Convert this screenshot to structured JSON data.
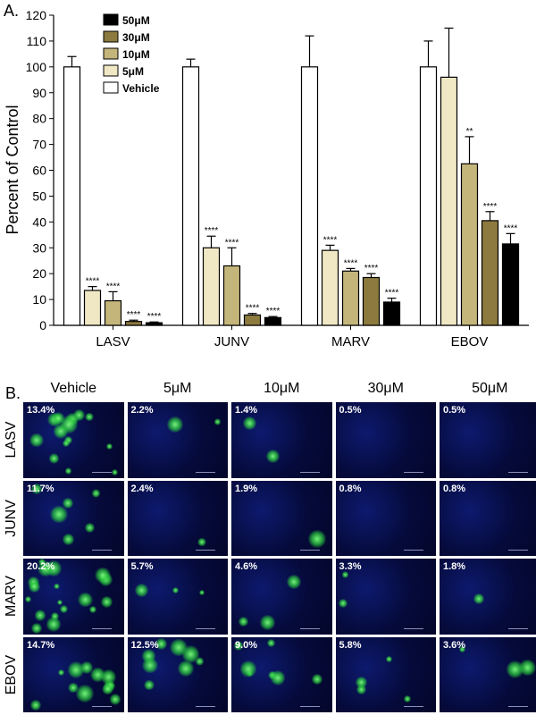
{
  "panel_a_label": "A.",
  "panel_b_label": "B.",
  "chart_data": {
    "type": "bar",
    "ylabel": "Percent of Control",
    "ylim": [
      0,
      120
    ],
    "yticks": [
      0,
      10,
      20,
      30,
      40,
      50,
      60,
      70,
      80,
      90,
      100,
      110,
      120
    ],
    "categories": [
      "LASV",
      "JUNV",
      "MARV",
      "EBOV"
    ],
    "legend_placement": "top-left",
    "legend_order": [
      "50μM",
      "30μM",
      "10μM",
      "5μM",
      "Vehicle"
    ],
    "series": [
      {
        "name": "Vehicle",
        "color": "#ffffff",
        "values": [
          100,
          100,
          100,
          100
        ],
        "errors": [
          4,
          3,
          12,
          10
        ],
        "sig": [
          "",
          "",
          "",
          ""
        ]
      },
      {
        "name": "5μM",
        "color": "#f0e7c4",
        "values": [
          13.5,
          30,
          29,
          96
        ],
        "errors": [
          1.5,
          4.5,
          2,
          19
        ],
        "sig": [
          "****",
          "****",
          "****",
          ""
        ]
      },
      {
        "name": "10μM",
        "color": "#c4b57a",
        "values": [
          9.5,
          23,
          21,
          62.5
        ],
        "errors": [
          3.5,
          7,
          1,
          10.5
        ],
        "sig": [
          "****",
          "****",
          "****",
          "**"
        ]
      },
      {
        "name": "30μM",
        "color": "#8c7a3f",
        "values": [
          1.5,
          4,
          18.5,
          40.5
        ],
        "errors": [
          0.5,
          0.6,
          1.5,
          3.5
        ],
        "sig": [
          "****",
          "****",
          "****",
          "****"
        ]
      },
      {
        "name": "50μM",
        "color": "#000000",
        "values": [
          1,
          3,
          9,
          31.5
        ],
        "errors": [
          0.3,
          0.4,
          1.5,
          4
        ],
        "sig": [
          "****",
          "****",
          "****",
          "****"
        ]
      }
    ]
  },
  "panel_b": {
    "columns": [
      "Vehicle",
      "5μM",
      "10μM",
      "30μM",
      "50μM"
    ],
    "rows": [
      {
        "label": "LASV",
        "values": [
          "13.4%",
          "2.2%",
          "1.4%",
          "0.5%",
          "0.5%"
        ]
      },
      {
        "label": "JUNV",
        "values": [
          "11.7%",
          "2.4%",
          "1.9%",
          "0.8%",
          "0.8%"
        ]
      },
      {
        "label": "MARV",
        "values": [
          "20.2%",
          "5.7%",
          "4.6%",
          "3.3%",
          "1.8%"
        ]
      },
      {
        "label": "EBOV",
        "values": [
          "14.7%",
          "12.5%",
          "9.0%",
          "5.8%",
          "3.6%"
        ]
      }
    ]
  }
}
